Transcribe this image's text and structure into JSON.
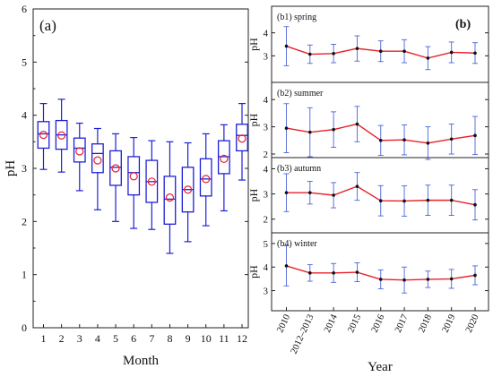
{
  "chart_data": [
    {
      "panel": "(a)",
      "type": "box",
      "xlabel": "Month",
      "ylabel": "pH",
      "ylim": [
        0,
        6
      ],
      "yticks": [
        0,
        1,
        2,
        3,
        4,
        5,
        6
      ],
      "categories": [
        "1",
        "2",
        "3",
        "4",
        "5",
        "6",
        "7",
        "8",
        "9",
        "10",
        "11",
        "12"
      ],
      "colors": {
        "box": "#1f1fd6",
        "mean": "#e8202a"
      },
      "boxes": [
        {
          "whisker_low": 2.98,
          "q1": 3.38,
          "median": 3.65,
          "q3": 3.88,
          "whisker_high": 4.22,
          "mean": 3.63
        },
        {
          "whisker_low": 2.93,
          "q1": 3.36,
          "median": 3.63,
          "q3": 3.9,
          "whisker_high": 4.3,
          "mean": 3.62
        },
        {
          "whisker_low": 2.58,
          "q1": 3.12,
          "median": 3.38,
          "q3": 3.57,
          "whisker_high": 3.85,
          "mean": 3.32
        },
        {
          "whisker_low": 2.22,
          "q1": 2.92,
          "median": 3.28,
          "q3": 3.46,
          "whisker_high": 3.75,
          "mean": 3.15
        },
        {
          "whisker_low": 2.0,
          "q1": 2.68,
          "median": 3.02,
          "q3": 3.33,
          "whisker_high": 3.65,
          "mean": 3.0
        },
        {
          "whisker_low": 1.87,
          "q1": 2.5,
          "median": 2.92,
          "q3": 3.22,
          "whisker_high": 3.58,
          "mean": 2.85
        },
        {
          "whisker_low": 1.85,
          "q1": 2.36,
          "median": 2.75,
          "q3": 3.15,
          "whisker_high": 3.52,
          "mean": 2.75
        },
        {
          "whisker_low": 1.4,
          "q1": 1.95,
          "median": 2.42,
          "q3": 2.85,
          "whisker_high": 3.5,
          "mean": 2.45
        },
        {
          "whisker_low": 1.62,
          "q1": 2.18,
          "median": 2.6,
          "q3": 3.02,
          "whisker_high": 3.48,
          "mean": 2.6
        },
        {
          "whisker_low": 1.92,
          "q1": 2.48,
          "median": 2.8,
          "q3": 3.18,
          "whisker_high": 3.65,
          "mean": 2.8
        },
        {
          "whisker_low": 2.2,
          "q1": 2.9,
          "median": 3.22,
          "q3": 3.52,
          "whisker_high": 3.82,
          "mean": 3.18
        },
        {
          "whisker_low": 2.78,
          "q1": 3.33,
          "median": 3.62,
          "q3": 3.83,
          "whisker_high": 4.22,
          "mean": 3.56
        }
      ]
    },
    {
      "panel": "(b)",
      "type": "line",
      "xlabel": "Year",
      "ylabel": "pH",
      "categories": [
        "2010",
        "2012–2013",
        "2014",
        "2015",
        "2016",
        "2017",
        "2018",
        "2019",
        "2020"
      ],
      "colors": {
        "line": "#e8202a",
        "errorbar": "#4a63d8",
        "marker": "#111111"
      },
      "subplots": [
        {
          "label": "(b1) spring",
          "ylim": [
            2,
            5
          ],
          "yticks": [
            3,
            4
          ],
          "values": [
            3.42,
            3.07,
            3.1,
            3.32,
            3.2,
            3.2,
            2.9,
            3.15,
            3.12
          ],
          "errors": [
            0.85,
            0.4,
            0.4,
            0.55,
            0.45,
            0.5,
            0.5,
            0.45,
            0.45
          ]
        },
        {
          "label": "(b2) summer",
          "ylim": [
            2,
            4.5
          ],
          "yticks": [
            2,
            3,
            4
          ],
          "values": [
            2.95,
            2.8,
            2.9,
            3.1,
            2.5,
            2.52,
            2.4,
            2.55,
            2.68
          ],
          "errors": [
            0.9,
            0.9,
            0.65,
            0.65,
            0.55,
            0.55,
            0.6,
            0.55,
            0.7
          ]
        },
        {
          "label": "(b3) autumn",
          "ylim": [
            1.6,
            4.3
          ],
          "yticks": [
            2,
            3,
            4
          ],
          "values": [
            3.05,
            3.05,
            2.95,
            3.3,
            2.73,
            2.72,
            2.75,
            2.75,
            2.57
          ],
          "errors": [
            0.75,
            0.45,
            0.5,
            0.55,
            0.6,
            0.6,
            0.6,
            0.6,
            0.6
          ]
        },
        {
          "label": "(b4) winter",
          "ylim": [
            2.3,
            5.3
          ],
          "yticks": [
            3,
            4,
            5
          ],
          "values": [
            4.05,
            3.75,
            3.75,
            3.78,
            3.48,
            3.45,
            3.48,
            3.5,
            3.65
          ],
          "errors": [
            0.85,
            0.35,
            0.4,
            0.4,
            0.4,
            0.55,
            0.35,
            0.4,
            0.4
          ]
        }
      ]
    }
  ]
}
